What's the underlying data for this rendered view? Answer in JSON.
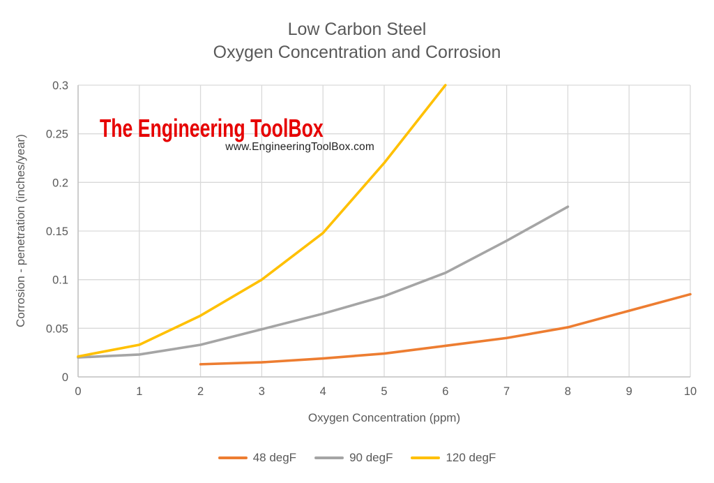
{
  "title": {
    "line1": "Low Carbon Steel",
    "line2": "Oxygen Concentration and Corrosion"
  },
  "watermark": {
    "brand": "The Engineering ToolBox",
    "url": "www.EngineeringToolBox.com",
    "brand_color": "#e60000"
  },
  "chart_data": {
    "type": "line",
    "title": "Low Carbon Steel - Oxygen Concentration and Corrosion",
    "xlabel": "Oxygen Concentration (ppm)",
    "ylabel": "Corrosion - penetration (inches/year)",
    "xlim": [
      0,
      10
    ],
    "ylim": [
      0,
      0.3
    ],
    "xticklabels": [
      "0",
      "1",
      "2",
      "3",
      "4",
      "5",
      "6",
      "7",
      "8",
      "9",
      "10"
    ],
    "yticklabels": [
      "0",
      "0.05",
      "0.1",
      "0.15",
      "0.2",
      "0.25",
      "0.3"
    ],
    "grid": true,
    "legend_position": "bottom",
    "series": [
      {
        "name": "48 degF",
        "color": "#ED7D31",
        "points": [
          [
            2,
            0.013
          ],
          [
            3,
            0.015
          ],
          [
            4,
            0.019
          ],
          [
            5,
            0.024
          ],
          [
            6,
            0.032
          ],
          [
            7,
            0.04
          ],
          [
            8,
            0.051
          ],
          [
            9,
            0.068
          ],
          [
            10,
            0.085
          ]
        ]
      },
      {
        "name": "90 degF",
        "color": "#A5A5A5",
        "points": [
          [
            0,
            0.02
          ],
          [
            1,
            0.023
          ],
          [
            2,
            0.033
          ],
          [
            3,
            0.049
          ],
          [
            4,
            0.065
          ],
          [
            5,
            0.083
          ],
          [
            6,
            0.107
          ],
          [
            7,
            0.14
          ],
          [
            8,
            0.175
          ]
        ]
      },
      {
        "name": "120 degF",
        "color": "#FFC000",
        "points": [
          [
            0,
            0.021
          ],
          [
            1,
            0.033
          ],
          [
            2,
            0.063
          ],
          [
            3,
            0.1
          ],
          [
            4,
            0.148
          ],
          [
            5,
            0.22
          ],
          [
            6,
            0.3
          ]
        ]
      }
    ]
  }
}
